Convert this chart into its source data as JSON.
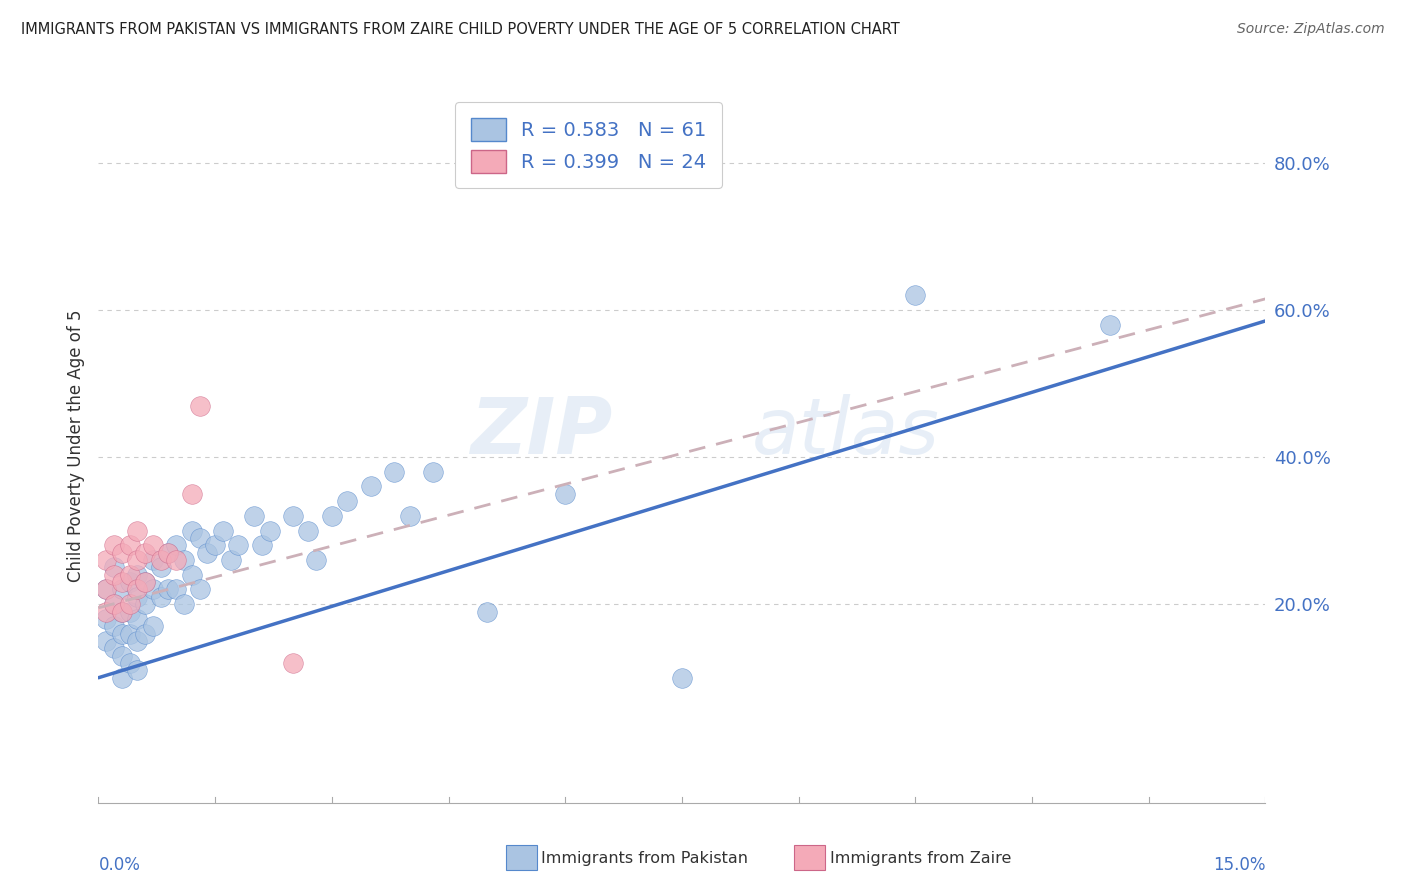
{
  "title": "IMMIGRANTS FROM PAKISTAN VS IMMIGRANTS FROM ZAIRE CHILD POVERTY UNDER THE AGE OF 5 CORRELATION CHART",
  "source": "Source: ZipAtlas.com",
  "ylabel": "Child Poverty Under the Age of 5",
  "ytick_labels": [
    "20.0%",
    "40.0%",
    "60.0%",
    "80.0%"
  ],
  "ytick_vals": [
    0.2,
    0.4,
    0.6,
    0.8
  ],
  "xmin": 0.0,
  "xmax": 0.15,
  "ymin": -0.07,
  "ymax": 0.9,
  "legend1_r": "0.583",
  "legend1_n": "61",
  "legend2_r": "0.399",
  "legend2_n": "24",
  "pakistan_color": "#aac4e2",
  "zaire_color": "#f4aab8",
  "pakistan_line_color": "#4472c4",
  "zaire_line_color": "#d46878",
  "pakistan_edge_color": "#5588cc",
  "zaire_edge_color": "#cc6688",
  "watermark_zip": "ZIP",
  "watermark_atlas": "atlas",
  "pakistan_points_x": [
    0.001,
    0.001,
    0.001,
    0.002,
    0.002,
    0.002,
    0.002,
    0.003,
    0.003,
    0.003,
    0.003,
    0.003,
    0.004,
    0.004,
    0.004,
    0.004,
    0.005,
    0.005,
    0.005,
    0.005,
    0.005,
    0.006,
    0.006,
    0.006,
    0.007,
    0.007,
    0.007,
    0.008,
    0.008,
    0.009,
    0.009,
    0.01,
    0.01,
    0.011,
    0.011,
    0.012,
    0.012,
    0.013,
    0.013,
    0.014,
    0.015,
    0.016,
    0.017,
    0.018,
    0.02,
    0.021,
    0.022,
    0.025,
    0.027,
    0.028,
    0.03,
    0.032,
    0.035,
    0.038,
    0.04,
    0.043,
    0.05,
    0.06,
    0.075,
    0.105,
    0.13
  ],
  "pakistan_points_y": [
    0.22,
    0.18,
    0.15,
    0.25,
    0.2,
    0.17,
    0.14,
    0.22,
    0.19,
    0.16,
    0.13,
    0.1,
    0.23,
    0.19,
    0.16,
    0.12,
    0.24,
    0.21,
    0.18,
    0.15,
    0.11,
    0.23,
    0.2,
    0.16,
    0.26,
    0.22,
    0.17,
    0.25,
    0.21,
    0.27,
    0.22,
    0.28,
    0.22,
    0.26,
    0.2,
    0.3,
    0.24,
    0.29,
    0.22,
    0.27,
    0.28,
    0.3,
    0.26,
    0.28,
    0.32,
    0.28,
    0.3,
    0.32,
    0.3,
    0.26,
    0.32,
    0.34,
    0.36,
    0.38,
    0.32,
    0.38,
    0.19,
    0.35,
    0.1,
    0.62,
    0.58
  ],
  "zaire_points_x": [
    0.001,
    0.001,
    0.001,
    0.002,
    0.002,
    0.002,
    0.003,
    0.003,
    0.003,
    0.004,
    0.004,
    0.004,
    0.005,
    0.005,
    0.005,
    0.006,
    0.006,
    0.007,
    0.008,
    0.009,
    0.01,
    0.012,
    0.013,
    0.025
  ],
  "zaire_points_y": [
    0.26,
    0.22,
    0.19,
    0.28,
    0.24,
    0.2,
    0.27,
    0.23,
    0.19,
    0.28,
    0.24,
    0.2,
    0.3,
    0.26,
    0.22,
    0.27,
    0.23,
    0.28,
    0.26,
    0.27,
    0.26,
    0.35,
    0.47,
    0.12
  ],
  "pak_line_x0": 0.0,
  "pak_line_y0": 0.1,
  "pak_line_x1": 0.15,
  "pak_line_y1": 0.585,
  "zaire_line_x0": 0.0,
  "zaire_line_y0": 0.195,
  "zaire_line_x1": 0.15,
  "zaire_line_y1": 0.615
}
